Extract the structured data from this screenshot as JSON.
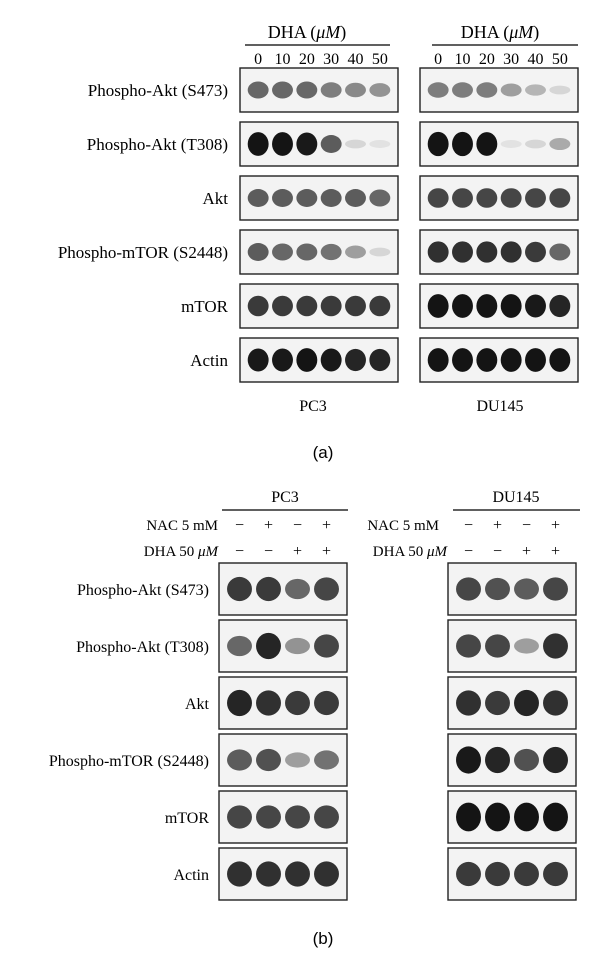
{
  "panel_a": {
    "caption": "(a)",
    "header_prefix": "DHA (",
    "header_unit": "μM",
    "header_suffix": ")",
    "concentrations": [
      "0",
      "10",
      "20",
      "30",
      "40",
      "50"
    ],
    "cell_lines": [
      "PC3",
      "DU145"
    ],
    "row_labels": [
      "Phospho-Akt (S473)",
      "Phospho-Akt (T308)",
      "Akt",
      "Phospho-mTOR (S2448)",
      "mTOR",
      "Actin"
    ],
    "band_intensity": {
      "PC3": [
        [
          0.55,
          0.55,
          0.55,
          0.45,
          0.4,
          0.35
        ],
        [
          0.95,
          0.95,
          0.9,
          0.6,
          0.05,
          0.0
        ],
        [
          0.6,
          0.6,
          0.6,
          0.6,
          0.6,
          0.55
        ],
        [
          0.6,
          0.55,
          0.55,
          0.5,
          0.3,
          0.05
        ],
        [
          0.75,
          0.75,
          0.75,
          0.75,
          0.75,
          0.75
        ],
        [
          0.9,
          0.9,
          0.95,
          0.9,
          0.85,
          0.85
        ]
      ],
      "DU145": [
        [
          0.45,
          0.45,
          0.45,
          0.3,
          0.2,
          0.05
        ],
        [
          0.98,
          0.98,
          0.95,
          0.0,
          0.05,
          0.25
        ],
        [
          0.7,
          0.7,
          0.7,
          0.7,
          0.7,
          0.7
        ],
        [
          0.8,
          0.8,
          0.8,
          0.8,
          0.75,
          0.55
        ],
        [
          0.95,
          0.95,
          0.95,
          0.95,
          0.9,
          0.85
        ],
        [
          0.95,
          0.95,
          0.95,
          0.95,
          0.95,
          0.95
        ]
      ]
    }
  },
  "panel_b": {
    "caption": "(b)",
    "cell_lines": [
      "PC3",
      "DU145"
    ],
    "nac_label": "NAC 5 mM",
    "dha_label_prefix": "DHA 50 ",
    "dha_label_unit": "μM",
    "nac_signs": [
      "−",
      "+",
      "−",
      "+"
    ],
    "dha_signs": [
      "−",
      "−",
      "+",
      "+"
    ],
    "row_labels": [
      "Phospho-Akt (S473)",
      "Phospho-Akt (T308)",
      "Akt",
      "Phospho-mTOR (S2448)",
      "mTOR",
      "Actin"
    ],
    "band_intensity": {
      "PC3": [
        [
          0.75,
          0.75,
          0.55,
          0.7
        ],
        [
          0.55,
          0.85,
          0.35,
          0.7
        ],
        [
          0.85,
          0.8,
          0.75,
          0.75
        ],
        [
          0.6,
          0.65,
          0.3,
          0.5
        ],
        [
          0.7,
          0.7,
          0.7,
          0.7
        ],
        [
          0.8,
          0.8,
          0.8,
          0.8
        ]
      ],
      "DU145": [
        [
          0.7,
          0.65,
          0.6,
          0.7
        ],
        [
          0.7,
          0.7,
          0.3,
          0.8
        ],
        [
          0.8,
          0.75,
          0.85,
          0.8
        ],
        [
          0.9,
          0.85,
          0.65,
          0.85
        ],
        [
          0.98,
          0.98,
          0.98,
          0.98
        ],
        [
          0.75,
          0.75,
          0.75,
          0.75
        ]
      ]
    }
  },
  "colors": {
    "band": "#141414",
    "blot_border": "#222222",
    "blot_bg": "#f3f3f3",
    "text": "#000000"
  }
}
